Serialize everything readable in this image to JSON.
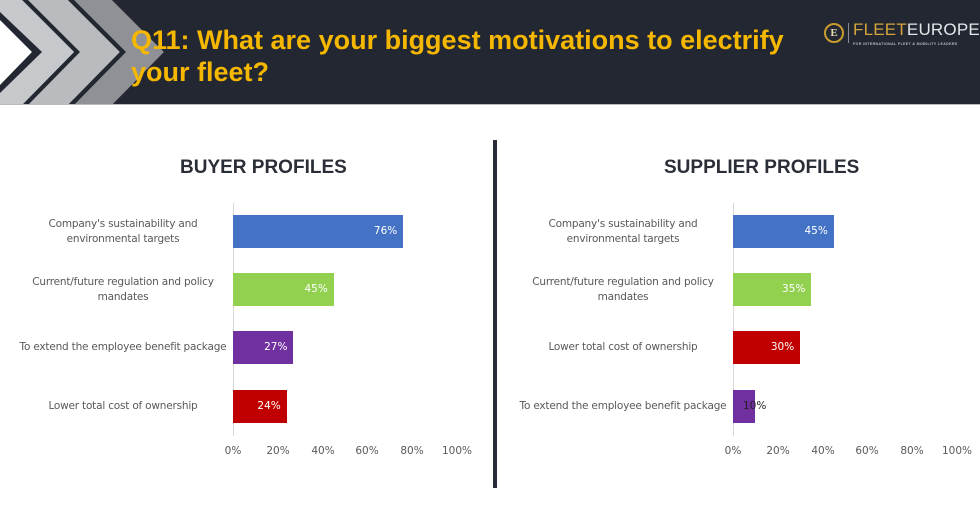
{
  "header": {
    "title": "Q11: What are your biggest motivations to electrify your fleet?",
    "title_color": "#f5b700",
    "background_color": "#222731",
    "logo": {
      "icon": "fleet-europe-badge-icon",
      "badge_letter": "E",
      "brand_part1": "FLEET",
      "brand_part2": "EUROPE",
      "tagline": "FOR INTERNATIONAL FLEET & MOBILITY LEADERS"
    }
  },
  "charts": {
    "buyer": {
      "title": "BUYER PROFILES",
      "categories": [
        "Company's sustainability and environmental targets",
        "Current/future regulation and policy mandates",
        "To extend the employee benefit package",
        "Lower total cost of ownership"
      ],
      "values": [
        76,
        45,
        27,
        24
      ],
      "labels": [
        "76%",
        "45%",
        "27%",
        "24%"
      ],
      "colors": [
        "#4472c4",
        "#92d050",
        "#7030a0",
        "#c00000"
      ]
    },
    "supplier": {
      "title": "SUPPLIER PROFILES",
      "categories": [
        "Company's sustainability and environmental targets",
        "Current/future regulation and policy mandates",
        "Lower total cost of ownership",
        "To extend the employee benefit package"
      ],
      "values": [
        45,
        35,
        30,
        10
      ],
      "labels": [
        "45%",
        "35%",
        "30%",
        "10%"
      ],
      "colors": [
        "#4472c4",
        "#92d050",
        "#c00000",
        "#7030a0"
      ]
    },
    "x_ticks": [
      "0%",
      "20%",
      "40%",
      "60%",
      "80%",
      "100%"
    ]
  },
  "chart_data": [
    {
      "type": "bar",
      "orientation": "horizontal",
      "title": "BUYER PROFILES",
      "categories": [
        "Company's sustainability and environmental targets",
        "Current/future regulation and policy mandates",
        "To extend the employee benefit package",
        "Lower total cost of ownership"
      ],
      "values": [
        76,
        45,
        27,
        24
      ],
      "data_labels": [
        "76%",
        "45%",
        "27%",
        "24%"
      ],
      "colors": [
        "#4472c4",
        "#92d050",
        "#7030a0",
        "#c00000"
      ],
      "xlabel": "",
      "ylabel": "",
      "xlim": [
        0,
        100
      ],
      "x_ticks": [
        "0%",
        "20%",
        "40%",
        "60%",
        "80%",
        "100%"
      ],
      "grid": false,
      "legend": "none"
    },
    {
      "type": "bar",
      "orientation": "horizontal",
      "title": "SUPPLIER PROFILES",
      "categories": [
        "Company's sustainability and environmental targets",
        "Current/future regulation and policy mandates",
        "Lower total cost of ownership",
        "To extend the employee benefit package"
      ],
      "values": [
        45,
        35,
        30,
        10
      ],
      "data_labels": [
        "45%",
        "35%",
        "30%",
        "10%"
      ],
      "colors": [
        "#4472c4",
        "#92d050",
        "#c00000",
        "#7030a0"
      ],
      "xlabel": "",
      "ylabel": "",
      "xlim": [
        0,
        100
      ],
      "x_ticks": [
        "0%",
        "20%",
        "40%",
        "60%",
        "80%",
        "100%"
      ],
      "grid": false,
      "legend": "none"
    }
  ]
}
